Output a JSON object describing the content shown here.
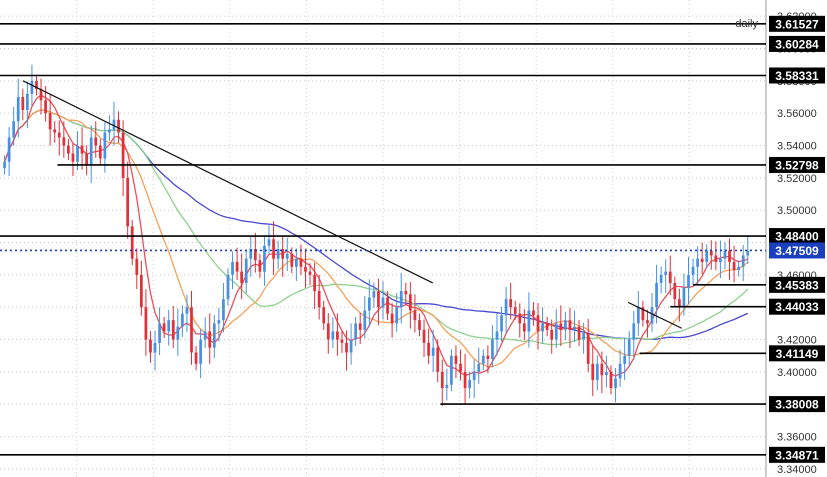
{
  "chart_data": {
    "type": "candlestick",
    "timeframe": "daily",
    "ylim": [
      3.335,
      3.63
    ],
    "y_ticks": [
      3.34,
      3.36,
      3.38,
      3.4,
      3.42,
      3.44,
      3.46,
      3.48,
      3.5,
      3.52,
      3.54,
      3.56,
      3.58,
      3.6,
      3.62
    ],
    "y_tick_labels": [
      "3.34000",
      "3.36000",
      "3.38000",
      "3.40000",
      "3.42000",
      "3.44000",
      "3.46000",
      "3.48000",
      "3.50000",
      "3.52000",
      "3.54000",
      "3.56000",
      "3.58000",
      "3.60000",
      "3.62000"
    ],
    "current_price": {
      "value": 3.47509,
      "label": "3.47509",
      "color": "#1a3fbf"
    },
    "levels": [
      {
        "value": 3.61527,
        "label": "3.61527",
        "from": 0.0
      },
      {
        "value": 3.60284,
        "label": "3.60284",
        "from": 0.0
      },
      {
        "value": 3.58331,
        "label": "3.58331",
        "from": 0.0
      },
      {
        "value": 3.52798,
        "label": "3.52798",
        "from": 0.075
      },
      {
        "value": 3.484,
        "label": "3.48400",
        "from": 0.0
      },
      {
        "value": 3.45383,
        "label": "3.45383",
        "from": 0.905
      },
      {
        "value": 3.44033,
        "label": "3.44033",
        "from": 0.875
      },
      {
        "value": 3.41149,
        "label": "3.41149",
        "from": 0.835
      },
      {
        "value": 3.38008,
        "label": "3.38008",
        "from": 0.575
      },
      {
        "value": 3.34871,
        "label": "3.34871",
        "from": 0.0
      }
    ],
    "trendlines": [
      {
        "x": [
          0.03,
          0.565
        ],
        "y": [
          3.58,
          3.455
        ]
      },
      {
        "x": [
          0.82,
          0.89
        ],
        "y": [
          3.443,
          3.427
        ]
      }
    ],
    "closes": [
      3.53,
      3.545,
      3.555,
      3.57,
      3.562,
      3.572,
      3.58,
      3.575,
      3.568,
      3.56,
      3.55,
      3.548,
      3.545,
      3.54,
      3.535,
      3.53,
      3.54,
      3.535,
      3.528,
      3.545,
      3.54,
      3.532,
      3.548,
      3.55,
      3.556,
      3.548,
      3.52,
      3.49,
      3.47,
      3.46,
      3.44,
      3.42,
      3.412,
      3.418,
      3.43,
      3.425,
      3.432,
      3.42,
      3.428,
      3.436,
      3.44,
      3.412,
      3.405,
      3.42,
      3.425,
      3.415,
      3.43,
      3.432,
      3.445,
      3.46,
      3.468,
      3.462,
      3.455,
      3.47,
      3.476,
      3.469,
      3.462,
      3.478,
      3.482,
      3.47,
      3.476,
      3.47,
      3.473,
      3.465,
      3.47,
      3.465,
      3.462,
      3.46,
      3.45,
      3.44,
      3.43,
      3.42,
      3.425,
      3.42,
      3.418,
      3.412,
      3.42,
      3.43,
      3.426,
      3.438,
      3.446,
      3.45,
      3.44,
      3.446,
      3.436,
      3.43,
      3.44,
      3.45,
      3.448,
      3.438,
      3.432,
      3.426,
      3.418,
      3.41,
      3.415,
      3.4,
      3.39,
      3.392,
      3.41,
      3.405,
      3.4,
      3.39,
      3.395,
      3.4,
      3.405,
      3.41,
      3.408,
      3.42,
      3.425,
      3.435,
      3.445,
      3.44,
      3.436,
      3.43,
      3.425,
      3.438,
      3.435,
      3.425,
      3.43,
      3.426,
      3.42,
      3.43,
      3.426,
      3.432,
      3.426,
      3.428,
      3.42,
      3.424,
      3.405,
      3.395,
      3.405,
      3.398,
      3.4,
      3.39,
      3.396,
      3.405,
      3.41,
      3.42,
      3.43,
      3.44,
      3.432,
      3.43,
      3.44,
      3.455,
      3.46,
      3.462,
      3.455,
      3.445,
      3.44,
      3.452,
      3.46,
      3.465,
      3.47,
      3.468,
      3.475,
      3.472,
      3.468,
      3.47,
      3.475,
      3.468,
      3.463,
      3.465,
      3.472,
      3.475
    ]
  }
}
